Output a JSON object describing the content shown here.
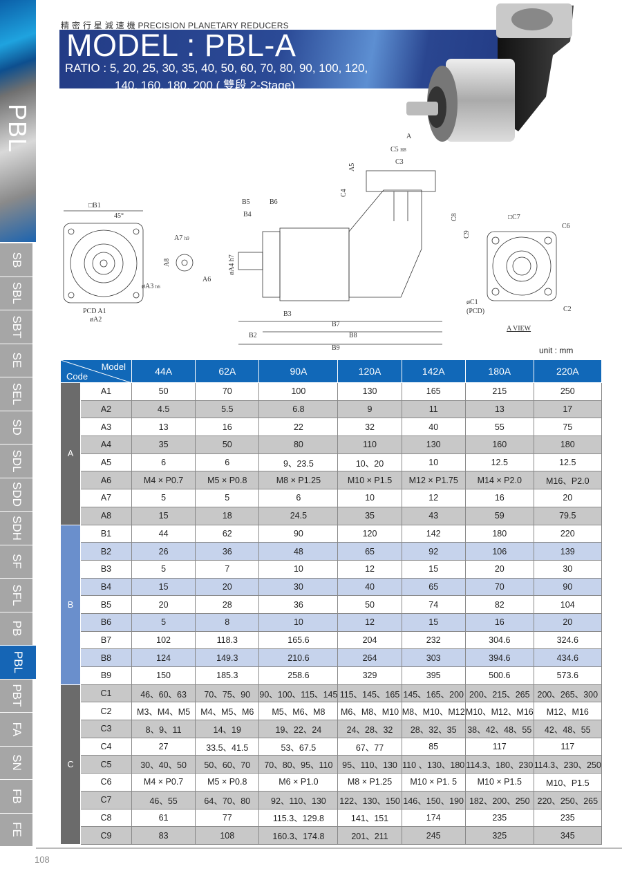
{
  "sidebar": {
    "top_label": "PBL",
    "tabs": [
      "SB",
      "SBL",
      "SBT",
      "SE",
      "SEL",
      "SD",
      "SDL",
      "SDD",
      "SDH",
      "SF",
      "SFL",
      "PB",
      "PBL",
      "PBT",
      "FA",
      "SN",
      "FB",
      "FE"
    ],
    "active_tab": "PBL"
  },
  "header": {
    "subtitle": "精 密 行 星 減 速 機   PRECISION PLANETARY REDUCERS",
    "title": "MODEL : PBL-A",
    "ratio_line1": "RATIO : 5, 20, 25, 30, 35, 40, 50, 60, 70, 80, 90, 100, 120,",
    "ratio_line2": "140, 160, 180, 200 ( 雙段 2-Stage)"
  },
  "drawing": {
    "B1": "□B1",
    "angle": "45°",
    "pcd": "PCD  A1",
    "A2": "øA2",
    "A7": "A7",
    "A7_tol": "h9",
    "A8": "A8",
    "A3": "øA3",
    "A3_tol": "h6",
    "A6": "A6",
    "A4": "øA4 h7",
    "B5": "B5",
    "B6": "B6",
    "B4": "B4",
    "B3": "B3",
    "B7": "B7",
    "B2": "B2",
    "B8": "B8",
    "B9": "B9",
    "A": "A",
    "C5": "C5",
    "C5_tol": "H8",
    "C3": "C3",
    "A5": "A5",
    "C4": "C4",
    "C8": "C8",
    "C9": "C9",
    "C7": "□C7",
    "C6": "C6",
    "C1": "øC1",
    "C1_pcd": "(PCD)",
    "C2": "C2",
    "view": "A  VIEW"
  },
  "unit": "unit : mm",
  "table": {
    "corner_model": "Model",
    "corner_code": "Code",
    "models": [
      "44A",
      "62A",
      "90A",
      "120A",
      "142A",
      "180A",
      "220A"
    ],
    "groups": [
      {
        "name": "A",
        "color": "#6b6b6b",
        "rows": [
          {
            "code": "A1",
            "values": [
              "50",
              "70",
              "100",
              "130",
              "165",
              "215",
              "250"
            ]
          },
          {
            "code": "A2",
            "values": [
              "4.5",
              "5.5",
              "6.8",
              "9",
              "11",
              "13",
              "17"
            ]
          },
          {
            "code": "A3",
            "values": [
              "13",
              "16",
              "22",
              "32",
              "40",
              "55",
              "75"
            ]
          },
          {
            "code": "A4",
            "values": [
              "35",
              "50",
              "80",
              "110",
              "130",
              "160",
              "180"
            ]
          },
          {
            "code": "A5",
            "values": [
              "6",
              "6",
              "9、23.5",
              "10、20",
              "10",
              "12.5",
              "12.5"
            ]
          },
          {
            "code": "A6",
            "values": [
              "M4 × P0.7",
              "M5 × P0.8",
              "M8 × P1.25",
              "M10 × P1.5",
              "M12 × P1.75",
              "M14 × P2.0",
              "M16、P2.0"
            ]
          },
          {
            "code": "A7",
            "values": [
              "5",
              "5",
              "6",
              "10",
              "12",
              "16",
              "20"
            ]
          },
          {
            "code": "A8",
            "values": [
              "15",
              "18",
              "24.5",
              "35",
              "43",
              "59",
              "79.5"
            ]
          }
        ]
      },
      {
        "name": "B",
        "color": "#6a8fcc",
        "rows": [
          {
            "code": "B1",
            "values": [
              "44",
              "62",
              "90",
              "120",
              "142",
              "180",
              "220"
            ]
          },
          {
            "code": "B2",
            "values": [
              "26",
              "36",
              "48",
              "65",
              "92",
              "106",
              "139"
            ]
          },
          {
            "code": "B3",
            "values": [
              "5",
              "7",
              "10",
              "12",
              "15",
              "20",
              "30"
            ]
          },
          {
            "code": "B4",
            "values": [
              "15",
              "20",
              "30",
              "40",
              "65",
              "70",
              "90"
            ]
          },
          {
            "code": "B5",
            "values": [
              "20",
              "28",
              "36",
              "50",
              "74",
              "82",
              "104"
            ]
          },
          {
            "code": "B6",
            "values": [
              "5",
              "8",
              "10",
              "12",
              "15",
              "16",
              "20"
            ]
          },
          {
            "code": "B7",
            "values": [
              "102",
              "118.3",
              "165.6",
              "204",
              "232",
              "304.6",
              "324.6"
            ]
          },
          {
            "code": "B8",
            "values": [
              "124",
              "149.3",
              "210.6",
              "264",
              "303",
              "394.6",
              "434.6"
            ]
          },
          {
            "code": "B9",
            "values": [
              "150",
              "185.3",
              "258.6",
              "329",
              "395",
              "500.6",
              "573.6"
            ]
          }
        ]
      },
      {
        "name": "C",
        "color": "#6b6b6b",
        "rows": [
          {
            "code": "C1",
            "values": [
              "46、60、63",
              "70、75、90",
              "90、100、115、145",
              "115、145、165",
              "145、165、200",
              "200、215、265",
              "200、265、300"
            ]
          },
          {
            "code": "C2",
            "values": [
              "M3、M4、M5",
              "M4、M5、M6",
              "M5、M6、M8",
              "M6、M8、M10",
              "M8、M10、M12",
              "M10、M12、M16",
              "M12、M16"
            ]
          },
          {
            "code": "C3",
            "values": [
              "8、9、11",
              "14、19",
              "19、22、24",
              "24、28、32",
              "28、32、35",
              "38、42、48、55",
              "42、48、55"
            ]
          },
          {
            "code": "C4",
            "values": [
              "27",
              "33.5、41.5",
              "53、67.5",
              "67、77",
              "85",
              "117",
              "117"
            ]
          },
          {
            "code": "C5",
            "values": [
              "30、40、50",
              "50、60、70",
              "70、80、95、110",
              "95、110、130",
              "110 、130、180",
              "114.3、180、230",
              "114.3、230、250"
            ]
          },
          {
            "code": "C6",
            "values": [
              "M4 × P0.7",
              "M5 × P0.8",
              "M6 × P1.0",
              "M8 × P1.25",
              "M10 × P1. 5",
              "M10 × P1.5",
              "M10、P1.5"
            ]
          },
          {
            "code": "C7",
            "values": [
              "46、55",
              "64、70、80",
              "92、110、130",
              "122、130、150",
              "146、150、190",
              "182、200、250",
              "220、250、265"
            ]
          },
          {
            "code": "C8",
            "values": [
              "61",
              "77",
              "115.3、129.8",
              "141、151",
              "174",
              "235",
              "235"
            ]
          },
          {
            "code": "C9",
            "values": [
              "83",
              "108",
              "160.3、174.8",
              "201、211",
              "245",
              "325",
              "345"
            ]
          }
        ]
      }
    ]
  },
  "page_number": "108",
  "colors": {
    "header_blue": "#1168b8",
    "banner_blue": "#233c86",
    "sidebar_active": "#1565b5",
    "sidebar_tab": "#a6a6a6"
  }
}
